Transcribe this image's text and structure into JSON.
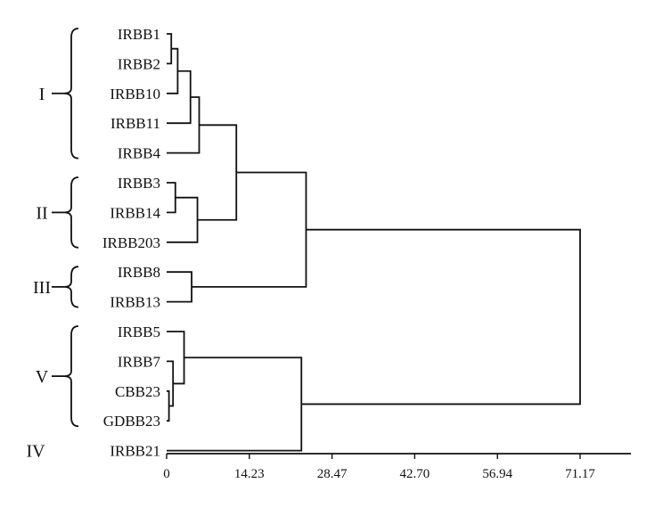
{
  "chart_data": {
    "type": "dendrogram",
    "leaves": [
      "IRBB1",
      "IRBB2",
      "IRBB10",
      "IRBB11",
      "IRBB4",
      "IRBB3",
      "IRBB14",
      "IRBB203",
      "IRBB8",
      "IRBB13",
      "IRBB5",
      "IRBB7",
      "CBB23",
      "GDBB23",
      "IRBB21"
    ],
    "x_ticks": [
      "0",
      "14.23",
      "28.47",
      "42.70",
      "56.94",
      "71.17"
    ],
    "x_tick_values": [
      0,
      14.23,
      28.47,
      42.7,
      56.94,
      71.17
    ],
    "xlim": [
      0,
      82
    ],
    "groups": [
      {
        "label": "I",
        "leaves": [
          "IRBB1",
          "IRBB2",
          "IRBB10",
          "IRBB11",
          "IRBB4"
        ]
      },
      {
        "label": "II",
        "leaves": [
          "IRBB3",
          "IRBB14",
          "IRBB203"
        ]
      },
      {
        "label": "III",
        "leaves": [
          "IRBB8",
          "IRBB13"
        ]
      },
      {
        "label": "V",
        "leaves": [
          "IRBB5",
          "IRBB7",
          "CBB23",
          "GDBB23"
        ]
      },
      {
        "label": "IV",
        "leaves": [
          "IRBB21"
        ]
      }
    ],
    "merges": [
      {
        "id": "m1",
        "left": "IRBB1",
        "right": "IRBB2",
        "height": 0.8
      },
      {
        "id": "m2",
        "left": "m1",
        "right": "IRBB10",
        "height": 1.9
      },
      {
        "id": "m3",
        "left": "m2",
        "right": "IRBB11",
        "height": 4.1
      },
      {
        "id": "m4",
        "left": "m3",
        "right": "IRBB4",
        "height": 5.6
      },
      {
        "id": "m5",
        "left": "IRBB3",
        "right": "IRBB14",
        "height": 1.5
      },
      {
        "id": "m6",
        "left": "m5",
        "right": "IRBB203",
        "height": 5.3
      },
      {
        "id": "m7",
        "left": "m4",
        "right": "m6",
        "height": 12.0
      },
      {
        "id": "m8",
        "left": "IRBB8",
        "right": "IRBB13",
        "height": 4.3
      },
      {
        "id": "m9",
        "left": "m7",
        "right": "m8",
        "height": 24.0
      },
      {
        "id": "m10",
        "left": "CBB23",
        "right": "GDBB23",
        "height": 0.4
      },
      {
        "id": "m11",
        "left": "IRBB7",
        "right": "m10",
        "height": 1.1
      },
      {
        "id": "m12",
        "left": "IRBB5",
        "right": "m11",
        "height": 3.0
      },
      {
        "id": "m13",
        "left": "m12",
        "right": "IRBB21",
        "height": 23.2
      },
      {
        "id": "m14",
        "left": "m9",
        "right": "m13",
        "height": 71.17
      }
    ]
  }
}
